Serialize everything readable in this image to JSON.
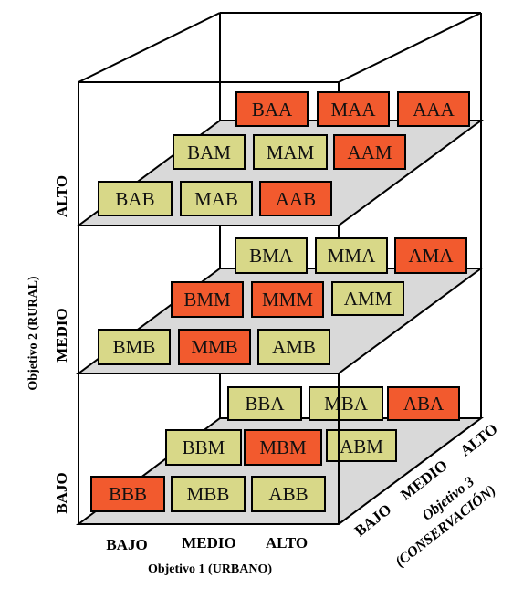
{
  "colors": {
    "cell_low": "#d8d888",
    "cell_high": "#f25a2e",
    "plane_fill": "#d9d9d9",
    "line": "#000000"
  },
  "axes": {
    "x": {
      "labels": [
        "BAJO",
        "MEDIO",
        "ALTO"
      ],
      "title": "Objetivo 1 (URBANO)"
    },
    "y": {
      "labels": [
        "BAJO",
        "MEDIO",
        "ALTO"
      ],
      "title": "Objetivo 2 (RURAL)"
    },
    "z": {
      "labels": [
        "BAJO",
        "MEDIO",
        "ALTO"
      ],
      "title_line1": "Objetivo 3",
      "title_line2": "(CONSERVACIÓN)"
    }
  },
  "levels": [
    {
      "name": "BAJO",
      "rows": [
        {
          "cells": [
            {
              "code": "BBB",
              "hi": true
            },
            {
              "code": "MBB",
              "hi": false
            },
            {
              "code": "ABB",
              "hi": false
            }
          ]
        },
        {
          "cells": [
            {
              "code": "BBM",
              "hi": false
            },
            {
              "code": "MBM",
              "hi": true
            },
            {
              "code": "ABM",
              "hi": false
            }
          ]
        },
        {
          "cells": [
            {
              "code": "BBA",
              "hi": false
            },
            {
              "code": "MBA",
              "hi": false
            },
            {
              "code": "ABA",
              "hi": true
            }
          ]
        }
      ]
    },
    {
      "name": "MEDIO",
      "rows": [
        {
          "cells": [
            {
              "code": "BMB",
              "hi": false
            },
            {
              "code": "MMB",
              "hi": true
            },
            {
              "code": "AMB",
              "hi": false
            }
          ]
        },
        {
          "cells": [
            {
              "code": "BMM",
              "hi": true
            },
            {
              "code": "MMM",
              "hi": true
            },
            {
              "code": "AMM",
              "hi": false
            }
          ]
        },
        {
          "cells": [
            {
              "code": "BMA",
              "hi": false
            },
            {
              "code": "MMA",
              "hi": false
            },
            {
              "code": "AMA",
              "hi": true
            }
          ]
        }
      ]
    },
    {
      "name": "ALTO",
      "rows": [
        {
          "cells": [
            {
              "code": "BAB",
              "hi": false
            },
            {
              "code": "MAB",
              "hi": false
            },
            {
              "code": "AAB",
              "hi": true
            }
          ]
        },
        {
          "cells": [
            {
              "code": "BAM",
              "hi": false
            },
            {
              "code": "MAM",
              "hi": false
            },
            {
              "code": "AAM",
              "hi": true
            }
          ]
        },
        {
          "cells": [
            {
              "code": "BAA",
              "hi": true
            },
            {
              "code": "MAA",
              "hi": true
            },
            {
              "code": "AAA",
              "hi": true
            }
          ]
        }
      ]
    }
  ]
}
